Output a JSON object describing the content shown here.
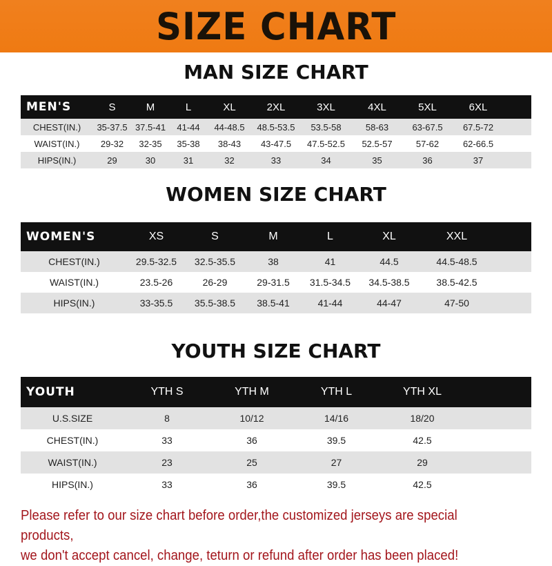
{
  "banner_title": "SIZE CHART",
  "men": {
    "title": "MAN SIZE CHART",
    "header": [
      "MEN'S",
      "S",
      "M",
      "L",
      "XL",
      "2XL",
      "3XL",
      "4XL",
      "5XL",
      "6XL"
    ],
    "rows": [
      [
        "CHEST(IN.)",
        "35-37.5",
        "37.5-41",
        "41-44",
        "44-48.5",
        "48.5-53.5",
        "53.5-58",
        "58-63",
        "63-67.5",
        "67.5-72"
      ],
      [
        "WAIST(IN.)",
        "29-32",
        "32-35",
        "35-38",
        "38-43",
        "43-47.5",
        "47.5-52.5",
        "52.5-57",
        "57-62",
        "62-66.5"
      ],
      [
        "HIPS(IN.)",
        "29",
        "30",
        "31",
        "32",
        "33",
        "34",
        "35",
        "36",
        "37"
      ]
    ]
  },
  "women": {
    "title": "WOMEN SIZE CHART",
    "header": [
      "WOMEN'S",
      "XS",
      "S",
      "M",
      "L",
      "XL",
      "XXL"
    ],
    "rows": [
      [
        "CHEST(IN.)",
        "29.5-32.5",
        "32.5-35.5",
        "38",
        "41",
        "44.5",
        "44.5-48.5"
      ],
      [
        "WAIST(IN.)",
        "23.5-26",
        "26-29",
        "29-31.5",
        "31.5-34.5",
        "34.5-38.5",
        "38.5-42.5"
      ],
      [
        "HIPS(IN.)",
        "33-35.5",
        "35.5-38.5",
        "38.5-41",
        "41-44",
        "44-47",
        "47-50"
      ]
    ]
  },
  "youth": {
    "title": "YOUTH SIZE CHART",
    "header": [
      "YOUTH",
      "YTH S",
      "YTH M",
      "YTH L",
      "YTH XL"
    ],
    "rows": [
      [
        "U.S.SIZE",
        "8",
        "10/12",
        "14/16",
        "18/20"
      ],
      [
        "CHEST(IN.)",
        "33",
        "36",
        "39.5",
        "42.5"
      ],
      [
        "WAIST(IN.)",
        "23",
        "25",
        "27",
        "29"
      ],
      [
        "HIPS(IN.)",
        "33",
        "36",
        "39.5",
        "42.5"
      ]
    ]
  },
  "note": {
    "line1": "Please refer to our size chart before order,the customized jerseys are special products,",
    "line2": "we don't accept cancel, change, teturn or refund after order has been placed!"
  },
  "colors": {
    "banner": "#ef7d18",
    "header_bg": "#111111",
    "stripe": "#e2e2e2",
    "note": "#a3161c"
  }
}
